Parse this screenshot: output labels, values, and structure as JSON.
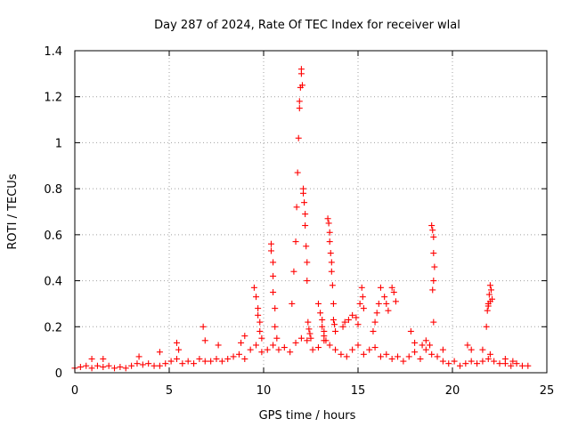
{
  "chart_data": {
    "type": "scatter",
    "title": "Day 287 of 2024, Rate Of TEC Index for receiver wlal",
    "xlabel": "GPS time / hours",
    "ylabel": "ROTI / TECUs",
    "xlim": [
      0,
      25
    ],
    "ylim": [
      0,
      1.4
    ],
    "x_ticks": [
      "0",
      "5",
      "10",
      "15",
      "20",
      "25"
    ],
    "y_ticks": [
      "0",
      "0.2",
      "0.4",
      "0.6",
      "0.8",
      "1",
      "1.2",
      "1.4"
    ],
    "grid": true,
    "marker": "+",
    "marker_color": "#ff0000",
    "series": [
      {
        "name": "ROTI",
        "x": [
          0.0,
          0.3,
          0.6,
          0.9,
          1.2,
          1.5,
          1.8,
          2.1,
          2.4,
          2.7,
          3.0,
          3.3,
          3.6,
          3.9,
          4.2,
          4.5,
          4.8,
          5.1,
          5.4,
          5.7,
          6.0,
          6.3,
          6.6,
          6.9,
          7.2,
          7.5,
          7.8,
          8.1,
          8.4,
          8.7,
          9.0,
          9.3,
          9.6,
          9.9,
          10.2,
          10.5,
          10.8,
          11.1,
          11.4,
          11.7,
          12.0,
          12.3,
          12.6,
          12.9,
          13.2,
          13.5,
          13.8,
          14.1,
          14.4,
          14.7,
          15.0,
          15.3,
          15.6,
          15.9,
          16.2,
          16.5,
          16.8,
          17.1,
          17.4,
          17.7,
          18.0,
          18.3,
          18.6,
          18.9,
          19.2,
          19.5,
          19.8,
          20.1,
          20.4,
          20.7,
          21.0,
          21.3,
          21.6,
          21.9,
          22.2,
          22.5,
          22.8,
          23.1,
          23.4,
          23.7,
          24.0,
          0.9,
          1.5,
          3.4,
          4.5,
          5.4,
          5.5,
          6.8,
          6.9,
          7.6,
          8.8,
          9.0,
          9.5,
          9.6,
          9.7,
          9.7,
          9.8,
          9.8,
          9.9,
          10.4,
          10.4,
          10.5,
          10.5,
          10.5,
          10.6,
          10.6,
          10.7,
          11.5,
          11.6,
          11.7,
          11.75,
          11.8,
          11.85,
          11.9,
          11.9,
          11.95,
          12.0,
          12.0,
          12.05,
          12.1,
          12.1,
          12.15,
          12.2,
          12.2,
          12.25,
          12.3,
          12.3,
          12.35,
          12.4,
          12.45,
          12.5,
          12.9,
          13.0,
          13.1,
          13.1,
          13.2,
          13.2,
          13.3,
          13.4,
          13.45,
          13.5,
          13.5,
          13.55,
          13.6,
          13.6,
          13.65,
          13.7,
          13.7,
          13.75,
          13.8,
          14.2,
          14.3,
          14.5,
          14.7,
          14.9,
          15.0,
          15.1,
          15.2,
          15.25,
          15.3,
          15.8,
          15.9,
          16.0,
          16.1,
          16.2,
          16.4,
          16.5,
          16.6,
          16.8,
          16.9,
          17.0,
          17.8,
          18.0,
          18.4,
          18.6,
          18.8,
          18.9,
          18.95,
          19.0,
          19.0,
          19.05,
          19.0,
          18.95,
          19.0,
          19.5,
          20.8,
          21.0,
          21.6,
          21.8,
          21.85,
          21.9,
          21.95,
          22.0,
          22.05,
          22.1,
          22.0,
          21.9,
          22.0,
          22.8,
          23.2
        ],
        "y": [
          0.02,
          0.025,
          0.03,
          0.02,
          0.03,
          0.025,
          0.03,
          0.02,
          0.025,
          0.02,
          0.03,
          0.04,
          0.035,
          0.04,
          0.03,
          0.03,
          0.04,
          0.05,
          0.06,
          0.04,
          0.05,
          0.04,
          0.06,
          0.05,
          0.05,
          0.06,
          0.05,
          0.06,
          0.07,
          0.08,
          0.06,
          0.1,
          0.12,
          0.09,
          0.1,
          0.12,
          0.1,
          0.11,
          0.09,
          0.13,
          0.15,
          0.14,
          0.1,
          0.11,
          0.14,
          0.12,
          0.1,
          0.08,
          0.07,
          0.1,
          0.12,
          0.08,
          0.1,
          0.11,
          0.07,
          0.08,
          0.06,
          0.07,
          0.05,
          0.07,
          0.09,
          0.06,
          0.1,
          0.08,
          0.07,
          0.05,
          0.04,
          0.05,
          0.03,
          0.04,
          0.05,
          0.04,
          0.05,
          0.06,
          0.05,
          0.04,
          0.04,
          0.03,
          0.04,
          0.03,
          0.03,
          0.06,
          0.06,
          0.07,
          0.09,
          0.13,
          0.1,
          0.2,
          0.14,
          0.12,
          0.13,
          0.16,
          0.37,
          0.33,
          0.28,
          0.25,
          0.22,
          0.18,
          0.15,
          0.56,
          0.53,
          0.48,
          0.42,
          0.35,
          0.28,
          0.2,
          0.15,
          0.3,
          0.44,
          0.57,
          0.72,
          0.87,
          1.02,
          1.15,
          1.18,
          1.24,
          1.3,
          1.32,
          1.25,
          0.8,
          0.78,
          0.74,
          0.69,
          0.64,
          0.55,
          0.48,
          0.4,
          0.22,
          0.19,
          0.17,
          0.15,
          0.3,
          0.26,
          0.23,
          0.2,
          0.18,
          0.16,
          0.14,
          0.67,
          0.65,
          0.61,
          0.57,
          0.52,
          0.48,
          0.44,
          0.38,
          0.3,
          0.23,
          0.21,
          0.18,
          0.2,
          0.22,
          0.23,
          0.25,
          0.24,
          0.21,
          0.3,
          0.37,
          0.33,
          0.28,
          0.18,
          0.22,
          0.26,
          0.3,
          0.37,
          0.33,
          0.3,
          0.27,
          0.37,
          0.35,
          0.31,
          0.18,
          0.13,
          0.12,
          0.14,
          0.12,
          0.64,
          0.62,
          0.59,
          0.52,
          0.46,
          0.4,
          0.36,
          0.22,
          0.1,
          0.12,
          0.1,
          0.1,
          0.2,
          0.27,
          0.3,
          0.34,
          0.38,
          0.36,
          0.32,
          0.31,
          0.29,
          0.08,
          0.06,
          0.05
        ]
      }
    ]
  }
}
